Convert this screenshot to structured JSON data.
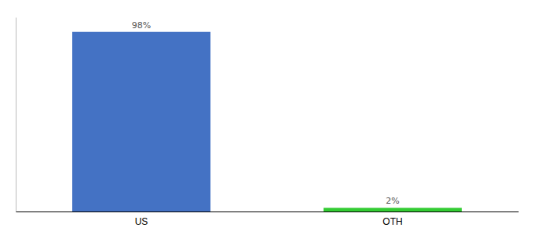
{
  "chart_data": {
    "type": "bar",
    "categories": [
      "US",
      "OTH"
    ],
    "values": [
      98,
      2
    ],
    "value_labels": [
      "98%",
      "2%"
    ],
    "colors": [
      "#4472C4",
      "#33CC33"
    ],
    "ylim": [
      0,
      106
    ],
    "data_labels": true,
    "tick_labels": "x"
  }
}
